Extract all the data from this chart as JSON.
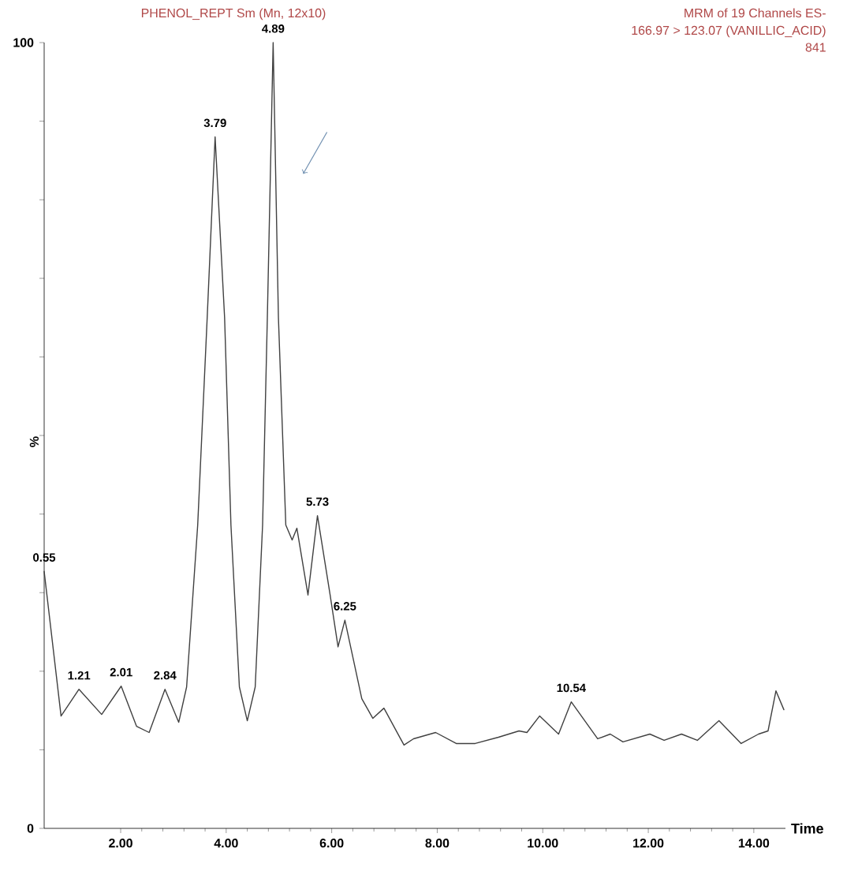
{
  "chart_data": {
    "type": "line",
    "title": "PHENOL_REPT Sm (Mn, 12x10)",
    "xlabel": "Time",
    "ylabel": "%",
    "color": "#404040",
    "grid": false,
    "marker": "none",
    "x": [
      0.55,
      0.87,
      1.21,
      1.64,
      2.01,
      2.3,
      2.54,
      2.84,
      3.1,
      3.25,
      3.46,
      3.64,
      3.79,
      3.97,
      4.09,
      4.25,
      4.4,
      4.55,
      4.69,
      4.78,
      4.89,
      4.99,
      5.13,
      5.25,
      5.34,
      5.55,
      5.73,
      5.97,
      6.12,
      6.25,
      6.57,
      6.78,
      6.99,
      7.37,
      7.55,
      7.97,
      8.36,
      8.72,
      9.16,
      9.55,
      9.7,
      9.94,
      10.3,
      10.54,
      11.04,
      11.28,
      11.52,
      12.03,
      12.3,
      12.63,
      12.93,
      13.34,
      13.76,
      14.09,
      14.27,
      14.42,
      14.57
    ],
    "values": [
      32.7,
      14.3,
      17.7,
      14.5,
      18.1,
      13,
      12.2,
      17.7,
      13.5,
      18,
      38.6,
      65,
      88,
      65,
      38.6,
      18,
      13.7,
      18,
      38.6,
      65,
      100,
      65,
      38.6,
      36.7,
      38.2,
      29.7,
      39.8,
      29.7,
      23.1,
      26.5,
      16.5,
      14,
      15.3,
      10.6,
      11.4,
      12.2,
      10.8,
      10.8,
      11.6,
      12.4,
      12.2,
      14.3,
      12.0,
      16.1,
      11.4,
      12.0,
      11.0,
      12.0,
      11.2,
      12.0,
      11.2,
      13.7,
      10.8,
      12.0,
      12.4,
      17.5,
      15.1
    ],
    "xlim": [
      0.55,
      14.6
    ],
    "ylim": [
      0,
      100
    ],
    "xticks": [
      {
        "value": 2,
        "label": "2.00"
      },
      {
        "value": 4,
        "label": "4.00"
      },
      {
        "value": 6,
        "label": "6.00"
      },
      {
        "value": 8,
        "label": "8.00"
      },
      {
        "value": 10,
        "label": "10.00"
      },
      {
        "value": 12,
        "label": "12.00"
      },
      {
        "value": 14,
        "label": "14.00"
      }
    ],
    "yticks": [
      0,
      {
        "value": 10,
        "label": null
      },
      {
        "value": 20,
        "label": null
      },
      {
        "value": 30,
        "label": null
      },
      {
        "value": 40,
        "label": null
      },
      {
        "value": 50,
        "label": null
      },
      {
        "value": 60,
        "label": null
      },
      {
        "value": 70,
        "label": null
      },
      {
        "value": 80,
        "label": null
      },
      {
        "value": 90,
        "label": null
      },
      100
    ],
    "annotations": [
      "MRM of 19 Channels ES-",
      "166.97 > 123.07 (VANILLIC_ACID)",
      "841",
      {
        "text": "0.55",
        "x": 0.55,
        "y": 32.7
      },
      {
        "text": "1.21",
        "x": 1.21,
        "y": 17.7
      },
      {
        "text": "2.01",
        "x": 2.01,
        "y": 18.1
      },
      {
        "text": "2.84",
        "x": 2.84,
        "y": 17.7
      },
      {
        "text": "3.79",
        "x": 3.79,
        "y": 88
      },
      {
        "text": "4.89",
        "x": 4.89,
        "y": 100
      },
      {
        "text": "5.73",
        "x": 5.73,
        "y": 39.8
      },
      {
        "text": "6.25",
        "x": 6.25,
        "y": 26.5
      },
      {
        "text": "10.54",
        "x": 10.54,
        "y": 16.1
      }
    ]
  }
}
